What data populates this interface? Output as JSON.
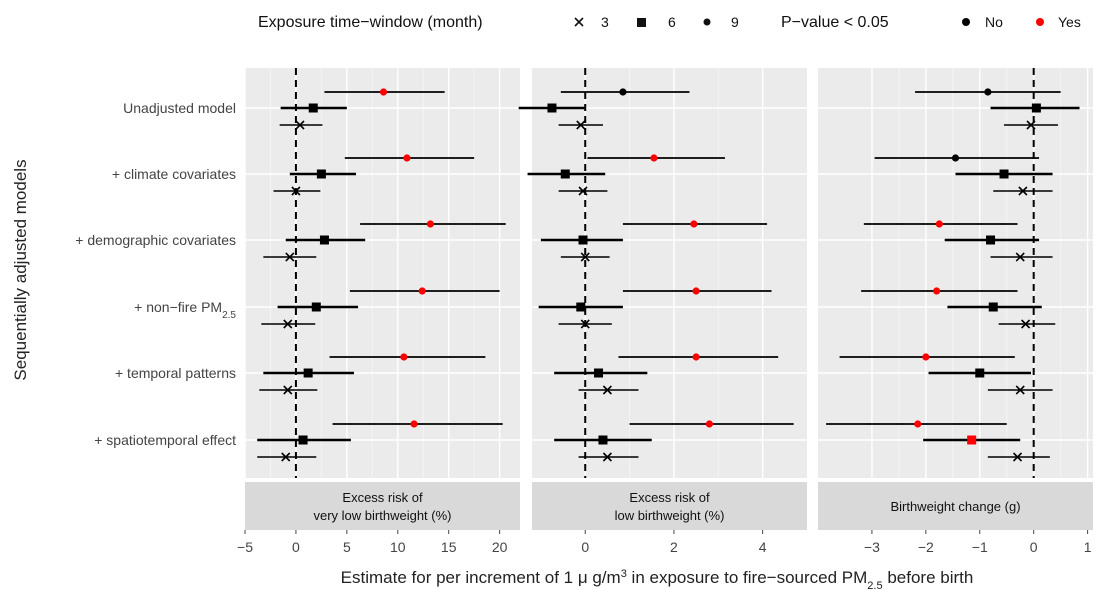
{
  "legend": {
    "window_title": "Exposure time−window (month)",
    "window_items": [
      {
        "label": "3",
        "shape": "cross"
      },
      {
        "label": "6",
        "shape": "square"
      },
      {
        "label": "9",
        "shape": "circle"
      }
    ],
    "pvalue_title": "P−value < 0.05",
    "pvalue_items": [
      {
        "label": "No",
        "color": "#000000"
      },
      {
        "label": "Yes",
        "color": "#ff0000"
      }
    ]
  },
  "colors": {
    "significant": "#ff0000",
    "not_significant": "#000000",
    "panel_bg": "#ebebeb",
    "strip_bg": "#d9d9d9"
  },
  "chart_data": {
    "type": "forest",
    "ylabel": "Sequentially adjusted models",
    "xlabel": {
      "prefix": "Estimate for per increment of 1 μ g/m",
      "sup": "3",
      "middle": " in exposure to fire−sourced PM",
      "sub": "2.5",
      "suffix": " before birth"
    },
    "categories": [
      {
        "text": "Unadjusted model",
        "sub": ""
      },
      {
        "text": "+ climate covariates",
        "sub": ""
      },
      {
        "text": "+ demographic covariates",
        "sub": ""
      },
      {
        "text": "+ non−fire PM",
        "sub": "2.5"
      },
      {
        "text": "+ temporal patterns",
        "sub": ""
      },
      {
        "text": "+ spatiotemporal effect",
        "sub": ""
      }
    ],
    "panels": [
      {
        "strip": [
          "Excess risk of",
          "very low birthweight (%)"
        ],
        "xlim": [
          -5,
          22
        ],
        "ticks": [
          -5,
          0,
          5,
          10,
          15,
          20
        ],
        "tick_labels": [
          "−5",
          "0",
          "5",
          "10",
          "15",
          "20"
        ],
        "estimates": [
          [
            {
              "w": 9,
              "est": 8.6,
              "lo": 2.8,
              "hi": 14.6,
              "sig": true
            },
            {
              "w": 6,
              "est": 1.7,
              "lo": -1.5,
              "hi": 5.0,
              "sig": false
            },
            {
              "w": 3,
              "est": 0.4,
              "lo": -1.6,
              "hi": 2.6,
              "sig": false
            }
          ],
          [
            {
              "w": 9,
              "est": 10.9,
              "lo": 4.8,
              "hi": 17.5,
              "sig": true
            },
            {
              "w": 6,
              "est": 2.5,
              "lo": -0.6,
              "hi": 5.9,
              "sig": false
            },
            {
              "w": 3,
              "est": 0.0,
              "lo": -2.2,
              "hi": 2.4,
              "sig": false
            }
          ],
          [
            {
              "w": 9,
              "est": 13.2,
              "lo": 6.3,
              "hi": 20.6,
              "sig": true
            },
            {
              "w": 6,
              "est": 2.8,
              "lo": -1.0,
              "hi": 6.8,
              "sig": false
            },
            {
              "w": 3,
              "est": -0.6,
              "lo": -3.2,
              "hi": 2.0,
              "sig": false
            }
          ],
          [
            {
              "w": 9,
              "est": 12.4,
              "lo": 5.3,
              "hi": 20.0,
              "sig": true
            },
            {
              "w": 6,
              "est": 2.0,
              "lo": -1.8,
              "hi": 6.1,
              "sig": false
            },
            {
              "w": 3,
              "est": -0.8,
              "lo": -3.4,
              "hi": 1.9,
              "sig": false
            }
          ],
          [
            {
              "w": 9,
              "est": 10.6,
              "lo": 3.3,
              "hi": 18.6,
              "sig": true
            },
            {
              "w": 6,
              "est": 1.2,
              "lo": -3.2,
              "hi": 5.7,
              "sig": false
            },
            {
              "w": 3,
              "est": -0.8,
              "lo": -3.6,
              "hi": 2.1,
              "sig": false
            }
          ],
          [
            {
              "w": 9,
              "est": 11.6,
              "lo": 3.6,
              "hi": 20.3,
              "sig": true
            },
            {
              "w": 6,
              "est": 0.7,
              "lo": -3.8,
              "hi": 5.4,
              "sig": false
            },
            {
              "w": 3,
              "est": -1.0,
              "lo": -3.8,
              "hi": 2.0,
              "sig": false
            }
          ]
        ]
      },
      {
        "strip": [
          "Excess risk of",
          "low birthweight (%)"
        ],
        "xlim": [
          -1.2,
          5.0
        ],
        "ticks": [
          0,
          2,
          4
        ],
        "tick_labels": [
          "0",
          "2",
          "4"
        ],
        "estimates": [
          [
            {
              "w": 9,
              "est": 0.85,
              "lo": -0.55,
              "hi": 2.35,
              "sig": false
            },
            {
              "w": 6,
              "est": -0.75,
              "lo": -1.5,
              "hi": 0.0,
              "sig": false
            },
            {
              "w": 3,
              "est": -0.1,
              "lo": -0.6,
              "hi": 0.4,
              "sig": false
            }
          ],
          [
            {
              "w": 9,
              "est": 1.55,
              "lo": 0.05,
              "hi": 3.15,
              "sig": true
            },
            {
              "w": 6,
              "est": -0.45,
              "lo": -1.3,
              "hi": 0.45,
              "sig": false
            },
            {
              "w": 3,
              "est": -0.05,
              "lo": -0.6,
              "hi": 0.5,
              "sig": false
            }
          ],
          [
            {
              "w": 9,
              "est": 2.45,
              "lo": 0.85,
              "hi": 4.1,
              "sig": true
            },
            {
              "w": 6,
              "est": -0.05,
              "lo": -1.0,
              "hi": 0.85,
              "sig": false
            },
            {
              "w": 3,
              "est": 0.0,
              "lo": -0.55,
              "hi": 0.55,
              "sig": false
            }
          ],
          [
            {
              "w": 9,
              "est": 2.5,
              "lo": 0.85,
              "hi": 4.2,
              "sig": true
            },
            {
              "w": 6,
              "est": -0.1,
              "lo": -1.05,
              "hi": 0.85,
              "sig": false
            },
            {
              "w": 3,
              "est": 0.0,
              "lo": -0.6,
              "hi": 0.6,
              "sig": false
            }
          ],
          [
            {
              "w": 9,
              "est": 2.5,
              "lo": 0.75,
              "hi": 4.35,
              "sig": true
            },
            {
              "w": 6,
              "est": 0.3,
              "lo": -0.7,
              "hi": 1.4,
              "sig": false
            },
            {
              "w": 3,
              "est": 0.5,
              "lo": -0.15,
              "hi": 1.2,
              "sig": false
            }
          ],
          [
            {
              "w": 9,
              "est": 2.8,
              "lo": 1.0,
              "hi": 4.7,
              "sig": true
            },
            {
              "w": 6,
              "est": 0.4,
              "lo": -0.7,
              "hi": 1.5,
              "sig": false
            },
            {
              "w": 3,
              "est": 0.5,
              "lo": -0.15,
              "hi": 1.2,
              "sig": false
            }
          ]
        ]
      },
      {
        "strip": [
          "Birthweight change (g)"
        ],
        "xlim": [
          -4.0,
          1.1
        ],
        "ticks": [
          -3,
          -2,
          -1,
          0,
          1
        ],
        "tick_labels": [
          "−3",
          "−2",
          "−1",
          "0",
          "1"
        ],
        "estimates": [
          [
            {
              "w": 9,
              "est": -0.85,
              "lo": -2.2,
              "hi": 0.5,
              "sig": false
            },
            {
              "w": 6,
              "est": 0.05,
              "lo": -0.8,
              "hi": 0.85,
              "sig": false
            },
            {
              "w": 3,
              "est": -0.05,
              "lo": -0.55,
              "hi": 0.45,
              "sig": false
            }
          ],
          [
            {
              "w": 9,
              "est": -1.45,
              "lo": -2.95,
              "hi": 0.1,
              "sig": false
            },
            {
              "w": 6,
              "est": -0.55,
              "lo": -1.45,
              "hi": 0.35,
              "sig": false
            },
            {
              "w": 3,
              "est": -0.2,
              "lo": -0.75,
              "hi": 0.35,
              "sig": false
            }
          ],
          [
            {
              "w": 9,
              "est": -1.75,
              "lo": -3.15,
              "hi": -0.3,
              "sig": true
            },
            {
              "w": 6,
              "est": -0.8,
              "lo": -1.65,
              "hi": 0.1,
              "sig": false
            },
            {
              "w": 3,
              "est": -0.25,
              "lo": -0.8,
              "hi": 0.35,
              "sig": false
            }
          ],
          [
            {
              "w": 9,
              "est": -1.8,
              "lo": -3.2,
              "hi": -0.3,
              "sig": true
            },
            {
              "w": 6,
              "est": -0.75,
              "lo": -1.6,
              "hi": 0.15,
              "sig": false
            },
            {
              "w": 3,
              "est": -0.15,
              "lo": -0.65,
              "hi": 0.4,
              "sig": false
            }
          ],
          [
            {
              "w": 9,
              "est": -2.0,
              "lo": -3.6,
              "hi": -0.35,
              "sig": true
            },
            {
              "w": 6,
              "est": -1.0,
              "lo": -1.95,
              "hi": -0.05,
              "sig": false
            },
            {
              "w": 3,
              "est": -0.25,
              "lo": -0.85,
              "hi": 0.35,
              "sig": false
            }
          ],
          [
            {
              "w": 9,
              "est": -2.15,
              "lo": -3.85,
              "hi": -0.5,
              "sig": true
            },
            {
              "w": 6,
              "est": -1.15,
              "lo": -2.05,
              "hi": -0.25,
              "sig": true
            },
            {
              "w": 3,
              "est": -0.3,
              "lo": -0.85,
              "hi": 0.3,
              "sig": false
            }
          ]
        ]
      }
    ]
  }
}
